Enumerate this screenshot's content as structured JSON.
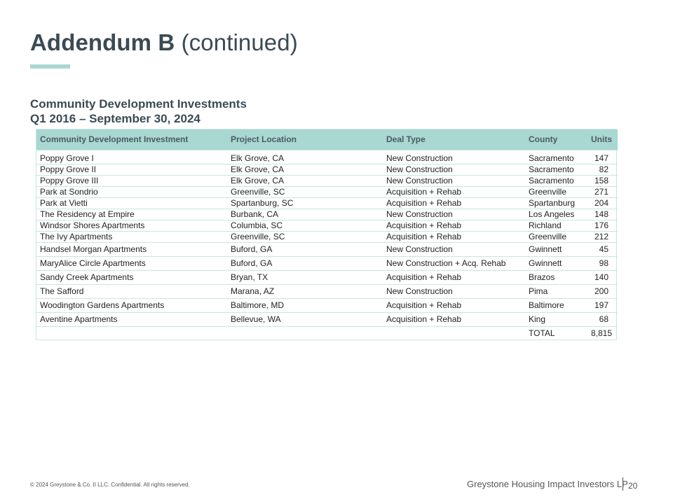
{
  "header": {
    "title_bold": "Addendum B",
    "title_rest": "(continued)"
  },
  "colors": {
    "accent": "#a8d8d1",
    "text": "#3b4a53"
  },
  "subtitle": {
    "line1": "Community Development Investments",
    "line2": "Q1 2016 – September 30, 2024"
  },
  "table": {
    "columns": [
      "Community Development Investment",
      "Project Location",
      "Deal Type",
      "County",
      "Units"
    ],
    "rows": [
      [
        "Poppy Grove I",
        "Elk Grove, CA",
        "New Construction",
        "Sacramento",
        "147"
      ],
      [
        "Poppy Grove II",
        "Elk Grove, CA",
        "New Construction",
        "Sacramento",
        "82"
      ],
      [
        "Poppy Grove III",
        "Elk Grove, CA",
        "New Construction",
        "Sacramento",
        "158"
      ],
      [
        "Park at Sondrio",
        "Greenville, SC",
        "Acquisition + Rehab",
        "Greenville",
        "271"
      ],
      [
        "Park at Vietti",
        "Spartanburg, SC",
        "Acquisition + Rehab",
        "Spartanburg",
        "204"
      ],
      [
        "The Residency at Empire",
        "Burbank, CA",
        "New Construction",
        "Los Angeles",
        "148"
      ],
      [
        "Windsor Shores Apartments",
        "Columbia, SC",
        "Acquisition + Rehab",
        "Richland",
        "176"
      ],
      [
        "The Ivy Apartments",
        "Greenville, SC",
        "Acquisition + Rehab",
        "Greenville",
        "212"
      ],
      [
        "Handsel Morgan Apartments",
        "Buford, GA",
        "New Construction",
        "Gwinnett",
        "45"
      ],
      [
        "MaryAlice Circle Apartments",
        "Buford, GA",
        "New Construction + Acq. Rehab",
        "Gwinnett",
        "98"
      ],
      [
        "Sandy Creek Apartments",
        "Bryan, TX",
        "Acquisition + Rehab",
        "Brazos",
        "140"
      ],
      [
        "The Safford",
        "Marana, AZ",
        "New Construction",
        "Pima",
        "200"
      ],
      [
        "Woodington Gardens Apartments",
        "Baltimore, MD",
        "Acquisition + Rehab",
        "Baltimore",
        "197"
      ],
      [
        "Aventine Apartments",
        "Bellevue, WA",
        "Acquisition + Rehab",
        "King",
        "68"
      ]
    ],
    "total_label": "TOTAL",
    "total_value": "8,815"
  },
  "footer": {
    "copyright": "© 2024 Greystone & Co. II LLC. Confidential. All rights reserved.",
    "company": "Greystone Housing Impact Investors LP",
    "page_number": "20"
  }
}
